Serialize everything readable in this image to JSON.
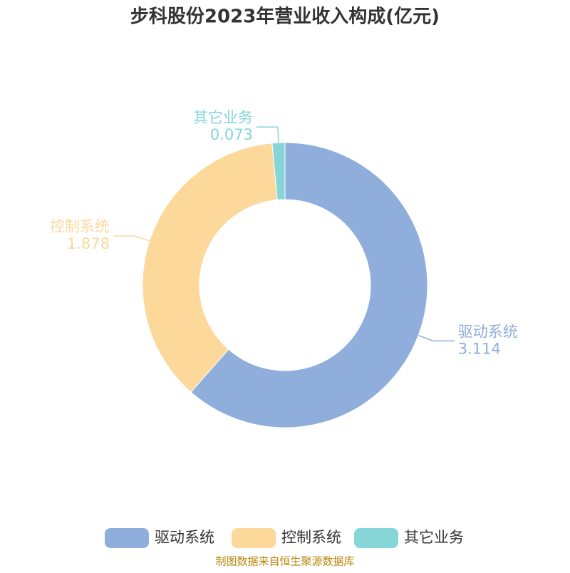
{
  "chart_data": {
    "type": "pie",
    "title": "步科股份2023年营业收入构成(亿元)",
    "categories": [
      "驱动系统",
      "控制系统",
      "其它业务"
    ],
    "values": [
      3.114,
      1.878,
      0.073
    ],
    "colors": [
      "#8faedb",
      "#fdd89b",
      "#86d6d8"
    ],
    "legend": "bottom",
    "source": "制图数据来自恒生聚源数据库"
  }
}
